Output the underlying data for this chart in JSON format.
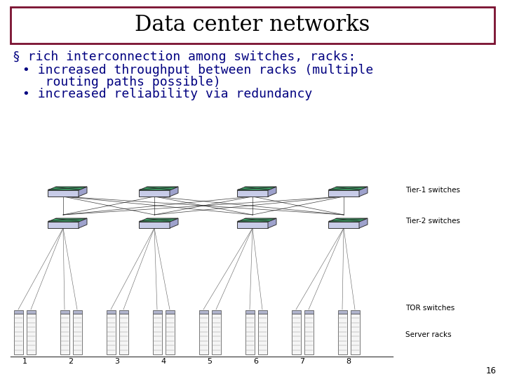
{
  "title": "Data center networks",
  "title_font_size": 22,
  "title_box_color": "#7a1030",
  "bullet_color": "#000080",
  "bullet_font_size": 13,
  "bullet1": "§ rich interconnection among switches, racks:",
  "sub_bullet1a": "• increased throughput between racks (multiple",
  "sub_bullet1b": "   routing paths possible)",
  "sub_bullet2": "• increased reliability via redundancy",
  "label_tier1": "Tier-1 switches",
  "label_tier2": "Tier-2 switches",
  "label_tor": "TOR switches",
  "label_server": "Server racks",
  "rack_numbers": [
    "1",
    "2",
    "3",
    "4",
    "5",
    "6",
    "7",
    "8"
  ],
  "page_number": "16",
  "bg_color": "#ffffff",
  "diagram_line_color": "#000000",
  "tier1_top_color": "#3daa6a",
  "tier1_body_color": "#c8cce8",
  "tier2_top_color": "#3daa6a",
  "tier2_body_color": "#c8cce8",
  "rack_fill": "#f5f5f5",
  "rack_border": "#444444",
  "label_font_size": 7.5
}
